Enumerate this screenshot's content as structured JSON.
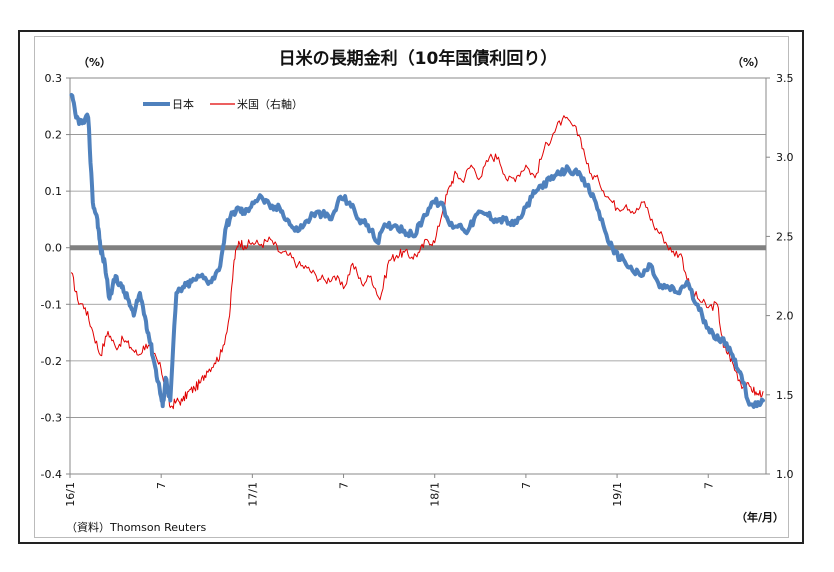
{
  "chart_data": {
    "type": "line",
    "title": "日米の長期金利（10年国債利回り）",
    "left_unit": "（%）",
    "right_unit": "（%）",
    "x_unit": "（年/月）",
    "source": "（資料）Thomson Reuters",
    "x_ticks": [
      "16/1",
      "7",
      "17/1",
      "7",
      "18/1",
      "7",
      "19/1",
      "7"
    ],
    "x_tick_months": [
      0,
      6,
      12,
      18,
      24,
      30,
      36,
      42
    ],
    "x_range": [
      0,
      45.8
    ],
    "left_axis": {
      "range": [
        -0.4,
        0.3
      ],
      "ticks": [
        "-0.4",
        "-0.3",
        "-0.2",
        "-0.1",
        "0.0",
        "0.1",
        "0.2",
        "0.3"
      ]
    },
    "right_axis": {
      "range": [
        1.0,
        3.5
      ],
      "ticks": [
        "1.0",
        "1.5",
        "2.0",
        "2.5",
        "3.0",
        "3.5"
      ]
    },
    "grid": true,
    "zero_line": 0.0,
    "legend_position": "top-left",
    "series": [
      {
        "name": "日本",
        "axis": "left",
        "color": "#4f81bd",
        "x": [
          0.1,
          0.4,
          0.8,
          1.2,
          1.5,
          1.8,
          2.0,
          2.3,
          2.6,
          3.0,
          3.4,
          3.8,
          4.2,
          4.6,
          5.0,
          5.3,
          5.6,
          5.9,
          6.1,
          6.3,
          6.6,
          7.0,
          7.5,
          8.0,
          8.6,
          9.2,
          9.8,
          10.3,
          10.7,
          11.1,
          11.5,
          12.0,
          12.6,
          13.2,
          13.8,
          14.3,
          14.8,
          15.4,
          16.0,
          16.6,
          17.2,
          17.8,
          18.4,
          19.0,
          19.6,
          20.2,
          20.8,
          21.4,
          22.0,
          22.6,
          23.2,
          23.8,
          24.4,
          25.0,
          25.6,
          26.2,
          26.8,
          27.4,
          28.0,
          28.6,
          29.2,
          29.8,
          30.4,
          31.0,
          31.6,
          32.2,
          32.8,
          33.4,
          34.0,
          34.6,
          35.2,
          35.8,
          36.4,
          37.0,
          37.6,
          38.2,
          38.8,
          39.4,
          40.0,
          40.6,
          41.2,
          41.8,
          42.4,
          43.0,
          43.6,
          44.1,
          44.6,
          45.2,
          45.6
        ],
        "values": [
          0.27,
          0.23,
          0.22,
          0.23,
          0.08,
          0.05,
          0.0,
          -0.03,
          -0.09,
          -0.05,
          -0.07,
          -0.09,
          -0.12,
          -0.08,
          -0.13,
          -0.17,
          -0.21,
          -0.25,
          -0.28,
          -0.23,
          -0.27,
          -0.08,
          -0.07,
          -0.06,
          -0.05,
          -0.06,
          -0.04,
          0.04,
          0.06,
          0.07,
          0.06,
          0.08,
          0.09,
          0.07,
          0.07,
          0.05,
          0.03,
          0.04,
          0.06,
          0.06,
          0.05,
          0.09,
          0.08,
          0.05,
          0.04,
          0.01,
          0.04,
          0.04,
          0.03,
          0.02,
          0.05,
          0.08,
          0.08,
          0.04,
          0.04,
          0.03,
          0.06,
          0.06,
          0.05,
          0.05,
          0.04,
          0.06,
          0.09,
          0.11,
          0.12,
          0.13,
          0.14,
          0.13,
          0.11,
          0.08,
          0.03,
          -0.01,
          -0.02,
          -0.04,
          -0.05,
          -0.03,
          -0.07,
          -0.07,
          -0.08,
          -0.06,
          -0.1,
          -0.13,
          -0.16,
          -0.16,
          -0.19,
          -0.22,
          -0.27,
          -0.28,
          -0.27
        ]
      },
      {
        "name": "米国（右軸）",
        "axis": "right",
        "color": "#e00000",
        "x": [
          0.1,
          0.5,
          1.0,
          1.5,
          2.0,
          2.5,
          3.0,
          3.5,
          4.0,
          4.5,
          5.0,
          5.5,
          6.0,
          6.3,
          6.6,
          7.0,
          7.4,
          7.8,
          8.2,
          8.6,
          9.0,
          9.5,
          10.0,
          10.5,
          10.8,
          11.1,
          11.5,
          12.0,
          12.6,
          13.2,
          13.8,
          14.4,
          15.0,
          15.6,
          16.2,
          16.8,
          17.4,
          18.0,
          18.6,
          19.2,
          19.8,
          20.4,
          21.0,
          21.5,
          22.0,
          22.5,
          23.0,
          23.5,
          24.0,
          24.6,
          25.0,
          25.4,
          25.8,
          26.4,
          27.0,
          27.6,
          28.2,
          28.8,
          29.4,
          30.0,
          30.6,
          31.2,
          31.8,
          32.4,
          33.0,
          33.6,
          34.2,
          34.8,
          35.4,
          36.0,
          36.6,
          37.2,
          37.8,
          38.4,
          39.0,
          39.6,
          40.2,
          40.8,
          41.4,
          42.0,
          42.6,
          43.0,
          43.4,
          43.8,
          44.3,
          44.8,
          45.2,
          45.6
        ],
        "values": [
          2.27,
          2.1,
          2.05,
          1.9,
          1.75,
          1.9,
          1.8,
          1.85,
          1.8,
          1.75,
          1.82,
          1.76,
          1.66,
          1.55,
          1.42,
          1.46,
          1.46,
          1.52,
          1.54,
          1.58,
          1.65,
          1.7,
          1.77,
          2.0,
          2.35,
          2.47,
          2.44,
          2.46,
          2.45,
          2.48,
          2.4,
          2.38,
          2.32,
          2.3,
          2.25,
          2.22,
          2.25,
          2.17,
          2.33,
          2.2,
          2.25,
          2.1,
          2.35,
          2.38,
          2.4,
          2.37,
          2.4,
          2.48,
          2.46,
          2.7,
          2.82,
          2.9,
          2.85,
          2.95,
          2.87,
          3.0,
          3.0,
          2.85,
          2.88,
          2.95,
          2.87,
          3.05,
          3.15,
          3.24,
          3.21,
          3.12,
          2.9,
          2.85,
          2.75,
          2.68,
          2.7,
          2.65,
          2.72,
          2.57,
          2.5,
          2.4,
          2.39,
          2.17,
          2.1,
          2.05,
          2.07,
          1.8,
          1.75,
          1.65,
          1.55,
          1.55,
          1.5,
          1.52
        ]
      }
    ]
  }
}
